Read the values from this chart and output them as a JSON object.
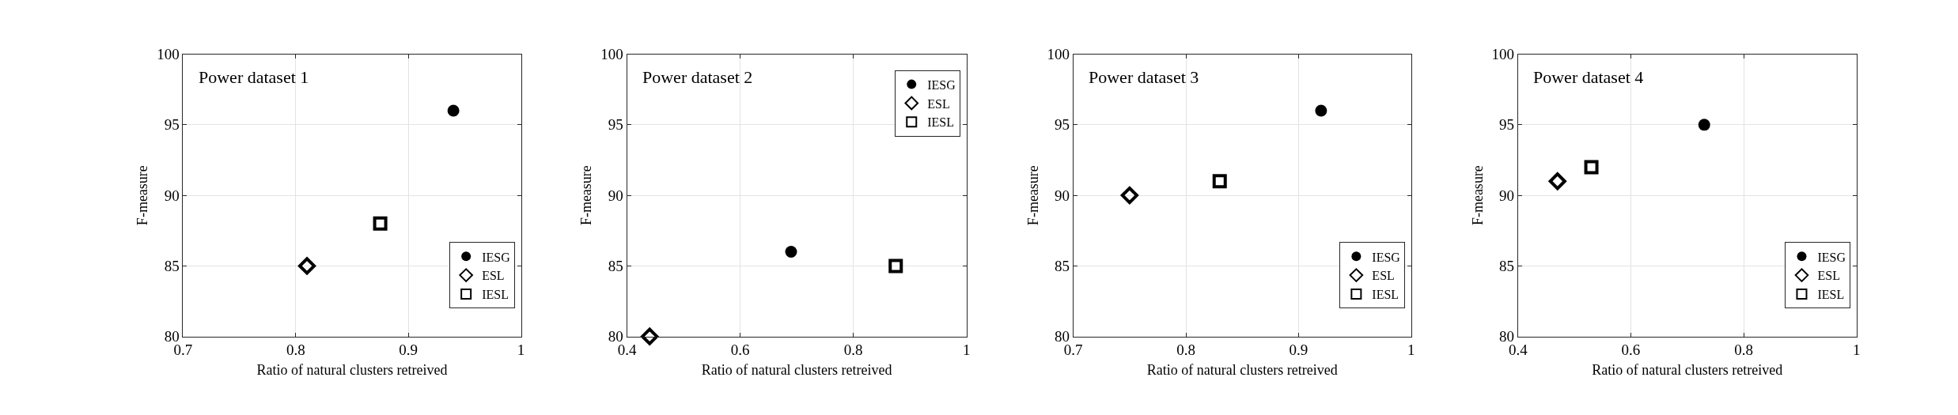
{
  "chart_data": [
    {
      "type": "scatter",
      "title": "Power dataset 1",
      "xlabel": "Ratio of natural clusters retreived",
      "ylabel": "F-measure",
      "xlim": [
        0.7,
        1
      ],
      "xticks": [
        0.7,
        0.8,
        0.9,
        1
      ],
      "ylim": [
        80,
        100
      ],
      "yticks": [
        80,
        85,
        90,
        95,
        100
      ],
      "grid": true,
      "legend": "bottom right",
      "series": [
        {
          "name": "IESG",
          "color": "#000000",
          "marker": "circle",
          "x": [
            0.94
          ],
          "values": [
            96
          ]
        },
        {
          "name": "ESL",
          "color": "#000000",
          "marker": "diamond",
          "x": [
            0.81
          ],
          "values": [
            85
          ]
        },
        {
          "name": "IESL",
          "color": "#000000",
          "marker": "square",
          "x": [
            0.875
          ],
          "values": [
            88
          ]
        }
      ]
    },
    {
      "type": "scatter",
      "title": "Power dataset 2",
      "xlabel": "Ratio of natural clusters retreived",
      "ylabel": "F-measure",
      "xlim": [
        0.4,
        1
      ],
      "xticks": [
        0.4,
        0.6,
        0.8,
        1
      ],
      "ylim": [
        80,
        100
      ],
      "yticks": [
        80,
        85,
        90,
        95,
        100
      ],
      "grid": true,
      "legend": "top right",
      "series": [
        {
          "name": "IESG",
          "color": "#000000",
          "marker": "circle",
          "x": [
            0.69
          ],
          "values": [
            86
          ]
        },
        {
          "name": "ESL",
          "color": "#000000",
          "marker": "diamond",
          "x": [
            0.44
          ],
          "values": [
            80
          ]
        },
        {
          "name": "IESL",
          "color": "#000000",
          "marker": "square",
          "x": [
            0.875
          ],
          "values": [
            85
          ]
        }
      ]
    },
    {
      "type": "scatter",
      "title": "Power dataset 3",
      "xlabel": "Ratio of natural clusters retreived",
      "ylabel": "F-measure",
      "xlim": [
        0.7,
        1
      ],
      "xticks": [
        0.7,
        0.8,
        0.9,
        1
      ],
      "ylim": [
        80,
        100
      ],
      "yticks": [
        80,
        85,
        90,
        95,
        100
      ],
      "grid": true,
      "legend": "bottom right",
      "series": [
        {
          "name": "IESG",
          "color": "#000000",
          "marker": "circle",
          "x": [
            0.92
          ],
          "values": [
            96
          ]
        },
        {
          "name": "ESL",
          "color": "#000000",
          "marker": "diamond",
          "x": [
            0.75
          ],
          "values": [
            90
          ]
        },
        {
          "name": "IESL",
          "color": "#000000",
          "marker": "square",
          "x": [
            0.83
          ],
          "values": [
            91
          ]
        }
      ]
    },
    {
      "type": "scatter",
      "title": "Power dataset 4",
      "xlabel": "Ratio of natural clusters retreived",
      "ylabel": "F-measure",
      "xlim": [
        0.4,
        1
      ],
      "xticks": [
        0.4,
        0.6,
        0.8,
        1
      ],
      "ylim": [
        80,
        100
      ],
      "yticks": [
        80,
        85,
        90,
        95,
        100
      ],
      "grid": true,
      "legend": "bottom right",
      "series": [
        {
          "name": "IESG",
          "color": "#000000",
          "marker": "circle",
          "x": [
            0.73
          ],
          "values": [
            95
          ]
        },
        {
          "name": "ESL",
          "color": "#000000",
          "marker": "diamond",
          "x": [
            0.47
          ],
          "values": [
            91
          ]
        },
        {
          "name": "IESL",
          "color": "#000000",
          "marker": "square",
          "x": [
            0.53
          ],
          "values": [
            92
          ]
        }
      ]
    }
  ]
}
